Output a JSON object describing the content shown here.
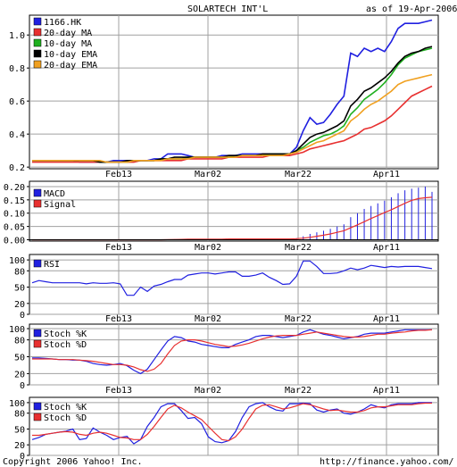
{
  "header": {
    "title": "SOLARTECH INT'L",
    "asof": "as of 19-Apr-2006"
  },
  "footer": {
    "copyright": "Copyright 2006 Yahoo! Inc.",
    "url": "http://finance.yahoo.com/"
  },
  "colors": {
    "blue": "#2020e0",
    "red": "#e83030",
    "green": "#20b020",
    "black": "#000000",
    "orange": "#f0a020",
    "grid": "#a0a0a0"
  },
  "chart_data": [
    {
      "type": "line",
      "name": "price",
      "x_ticks": [
        "Feb13",
        "Mar02",
        "Mar22",
        "Apr11"
      ],
      "ylim": [
        0.19,
        1.12
      ],
      "y_ticks": [
        0.2,
        0.4,
        0.6,
        0.8,
        1.0
      ],
      "y_tick_labels": [
        "0.2",
        "0.4",
        "0.6",
        "0.8",
        "1.0"
      ],
      "series": [
        {
          "name": "1166.HK",
          "color": "#2020e0",
          "values": [
            0.24,
            0.24,
            0.24,
            0.24,
            0.24,
            0.24,
            0.24,
            0.23,
            0.23,
            0.23,
            0.23,
            0.23,
            0.24,
            0.24,
            0.24,
            0.24,
            0.24,
            0.24,
            0.25,
            0.25,
            0.28,
            0.28,
            0.28,
            0.27,
            0.26,
            0.26,
            0.26,
            0.26,
            0.27,
            0.27,
            0.27,
            0.28,
            0.28,
            0.28,
            0.28,
            0.28,
            0.28,
            0.28,
            0.28,
            0.32,
            0.42,
            0.5,
            0.46,
            0.47,
            0.52,
            0.58,
            0.63,
            0.89,
            0.87,
            0.92,
            0.9,
            0.92,
            0.9,
            0.96,
            1.04,
            1.07,
            1.07,
            1.07,
            1.08,
            1.09
          ]
        },
        {
          "name": "20-day MA",
          "color": "#e83030",
          "values": [
            0.23,
            0.23,
            0.23,
            0.23,
            0.23,
            0.23,
            0.23,
            0.23,
            0.23,
            0.23,
            0.23,
            0.23,
            0.23,
            0.23,
            0.23,
            0.23,
            0.24,
            0.24,
            0.24,
            0.24,
            0.24,
            0.24,
            0.24,
            0.25,
            0.25,
            0.25,
            0.25,
            0.25,
            0.25,
            0.26,
            0.26,
            0.26,
            0.26,
            0.26,
            0.26,
            0.27,
            0.27,
            0.27,
            0.27,
            0.28,
            0.29,
            0.31,
            0.32,
            0.33,
            0.34,
            0.35,
            0.36,
            0.38,
            0.4,
            0.43,
            0.44,
            0.46,
            0.48,
            0.51,
            0.55,
            0.59,
            0.63,
            0.65,
            0.67,
            0.69
          ]
        },
        {
          "name": "10-day MA",
          "color": "#20b020",
          "values": [
            0.24,
            0.24,
            0.24,
            0.24,
            0.24,
            0.24,
            0.24,
            0.24,
            0.24,
            0.24,
            0.23,
            0.23,
            0.23,
            0.23,
            0.23,
            0.24,
            0.24,
            0.24,
            0.24,
            0.25,
            0.25,
            0.25,
            0.25,
            0.26,
            0.26,
            0.26,
            0.26,
            0.26,
            0.26,
            0.26,
            0.27,
            0.27,
            0.27,
            0.27,
            0.27,
            0.28,
            0.28,
            0.28,
            0.28,
            0.3,
            0.32,
            0.35,
            0.37,
            0.39,
            0.4,
            0.42,
            0.45,
            0.52,
            0.56,
            0.61,
            0.64,
            0.67,
            0.71,
            0.76,
            0.82,
            0.86,
            0.88,
            0.9,
            0.91,
            0.92
          ]
        },
        {
          "name": "10-day EMA",
          "color": "#000000",
          "values": [
            0.24,
            0.24,
            0.24,
            0.24,
            0.24,
            0.24,
            0.24,
            0.24,
            0.24,
            0.24,
            0.23,
            0.23,
            0.23,
            0.23,
            0.24,
            0.24,
            0.24,
            0.24,
            0.24,
            0.25,
            0.25,
            0.26,
            0.26,
            0.26,
            0.26,
            0.26,
            0.26,
            0.26,
            0.26,
            0.27,
            0.27,
            0.27,
            0.27,
            0.27,
            0.28,
            0.28,
            0.28,
            0.28,
            0.28,
            0.3,
            0.34,
            0.38,
            0.4,
            0.41,
            0.43,
            0.45,
            0.48,
            0.57,
            0.61,
            0.66,
            0.68,
            0.71,
            0.74,
            0.78,
            0.83,
            0.87,
            0.89,
            0.9,
            0.92,
            0.93
          ]
        },
        {
          "name": "20-day EMA",
          "color": "#f0a020",
          "values": [
            0.24,
            0.24,
            0.24,
            0.24,
            0.24,
            0.24,
            0.24,
            0.24,
            0.24,
            0.24,
            0.24,
            0.23,
            0.23,
            0.23,
            0.23,
            0.24,
            0.24,
            0.24,
            0.24,
            0.24,
            0.25,
            0.25,
            0.25,
            0.25,
            0.26,
            0.26,
            0.26,
            0.26,
            0.26,
            0.26,
            0.26,
            0.27,
            0.27,
            0.27,
            0.27,
            0.27,
            0.27,
            0.27,
            0.28,
            0.29,
            0.31,
            0.33,
            0.35,
            0.36,
            0.38,
            0.4,
            0.42,
            0.48,
            0.51,
            0.55,
            0.58,
            0.6,
            0.63,
            0.66,
            0.7,
            0.72,
            0.73,
            0.74,
            0.75,
            0.76
          ]
        }
      ]
    },
    {
      "type": "line",
      "name": "macd",
      "x_ticks": [
        "Feb13",
        "Mar02",
        "Mar22",
        "Apr11"
      ],
      "ylim": [
        -0.005,
        0.22
      ],
      "y_ticks": [
        0.0,
        0.05,
        0.1,
        0.15,
        0.2
      ],
      "y_tick_labels": [
        "0.00",
        "0.05",
        "0.10",
        "0.15",
        "0.20"
      ],
      "series": [
        {
          "name": "MACD",
          "color": "#2020e0",
          "style": "bars",
          "values": [
            0,
            0,
            0,
            0,
            0,
            0,
            0,
            0,
            0,
            0,
            0,
            0,
            0,
            0,
            0,
            0,
            0,
            0,
            0,
            0,
            0.001,
            0.002,
            0.003,
            0.003,
            0.003,
            0.003,
            0.003,
            0.003,
            0.003,
            0.003,
            0.003,
            0.003,
            0.003,
            0.003,
            0.003,
            0.003,
            0.003,
            0.003,
            0.003,
            0.006,
            0.013,
            0.022,
            0.028,
            0.034,
            0.041,
            0.05,
            0.058,
            0.085,
            0.1,
            0.116,
            0.127,
            0.137,
            0.147,
            0.16,
            0.175,
            0.186,
            0.192,
            0.196,
            0.2,
            0.18
          ]
        },
        {
          "name": "Signal",
          "color": "#e83030",
          "values": [
            0,
            0,
            0,
            0,
            0,
            0,
            0,
            0,
            0,
            0,
            0,
            0,
            0,
            0,
            0,
            0,
            0,
            0,
            0,
            0,
            0.0005,
            0.001,
            0.0015,
            0.002,
            0.002,
            0.002,
            0.002,
            0.002,
            0.002,
            0.003,
            0.003,
            0.003,
            0.003,
            0.003,
            0.003,
            0.003,
            0.003,
            0.003,
            0.003,
            0.004,
            0.006,
            0.009,
            0.013,
            0.017,
            0.022,
            0.028,
            0.034,
            0.045,
            0.056,
            0.068,
            0.08,
            0.091,
            0.102,
            0.113,
            0.125,
            0.137,
            0.148,
            0.155,
            0.158,
            0.16
          ]
        }
      ]
    },
    {
      "type": "line",
      "name": "rsi",
      "x_ticks": [
        "Feb13",
        "Mar02",
        "Mar22",
        "Apr11"
      ],
      "ylim": [
        0,
        110
      ],
      "y_ticks": [
        0,
        20,
        50,
        80,
        100
      ],
      "y_tick_labels": [
        "0",
        "20",
        "50",
        "80",
        "100"
      ],
      "series": [
        {
          "name": "RSI",
          "color": "#2020e0",
          "values": [
            58,
            62,
            60,
            58,
            58,
            58,
            58,
            58,
            56,
            58,
            57,
            57,
            58,
            56,
            35,
            35,
            50,
            42,
            52,
            55,
            60,
            64,
            64,
            72,
            74,
            76,
            76,
            74,
            76,
            78,
            78,
            70,
            70,
            72,
            76,
            68,
            62,
            55,
            56,
            70,
            98,
            98,
            88,
            75,
            75,
            76,
            80,
            85,
            82,
            85,
            90,
            88,
            86,
            88,
            87,
            88,
            88,
            88,
            86,
            84
          ]
        }
      ]
    },
    {
      "type": "line",
      "name": "stoch_slow",
      "x_ticks": [
        "Feb13",
        "Mar02",
        "Mar22",
        "Apr11"
      ],
      "ylim": [
        0,
        108
      ],
      "y_ticks": [
        0,
        20,
        50,
        80,
        100
      ],
      "y_tick_labels": [
        "0",
        "20",
        "50",
        "80",
        "100"
      ],
      "series": [
        {
          "name": "Stoch %K",
          "color": "#2020e0",
          "values": [
            48,
            48,
            47,
            46,
            45,
            45,
            44,
            44,
            42,
            38,
            36,
            35,
            36,
            38,
            34,
            26,
            20,
            28,
            45,
            62,
            78,
            86,
            84,
            78,
            76,
            72,
            70,
            68,
            66,
            66,
            72,
            76,
            80,
            86,
            88,
            88,
            86,
            84,
            86,
            88,
            94,
            98,
            94,
            90,
            88,
            85,
            82,
            84,
            86,
            90,
            92,
            92,
            92,
            94,
            96,
            98,
            98,
            98,
            98,
            98
          ]
        },
        {
          "name": "Stoch %D",
          "color": "#e83030",
          "values": [
            46,
            46,
            46,
            46,
            45,
            45,
            45,
            44,
            43,
            42,
            40,
            38,
            36,
            36,
            35,
            32,
            27,
            24,
            28,
            38,
            55,
            70,
            78,
            80,
            80,
            78,
            75,
            72,
            70,
            68,
            69,
            71,
            74,
            78,
            82,
            85,
            87,
            88,
            88,
            88,
            90,
            92,
            94,
            92,
            90,
            88,
            86,
            85,
            85,
            86,
            88,
            90,
            90,
            92,
            93,
            94,
            96,
            97,
            97,
            98
          ]
        }
      ]
    },
    {
      "type": "line",
      "name": "stoch_fast",
      "x_ticks": [
        "Feb13",
        "Mar02",
        "Mar22",
        "Apr11"
      ],
      "ylim": [
        0,
        110
      ],
      "y_ticks": [
        0,
        20,
        50,
        80,
        100
      ],
      "y_tick_labels": [
        "0",
        "20",
        "50",
        "80",
        "100"
      ],
      "series": [
        {
          "name": "Stoch %K",
          "color": "#2020e0",
          "values": [
            30,
            34,
            40,
            42,
            44,
            46,
            50,
            30,
            32,
            52,
            44,
            38,
            30,
            34,
            36,
            22,
            30,
            55,
            72,
            92,
            98,
            98,
            85,
            70,
            72,
            60,
            35,
            26,
            24,
            28,
            45,
            72,
            92,
            98,
            100,
            92,
            86,
            84,
            98,
            98,
            99,
            98,
            86,
            82,
            86,
            88,
            80,
            78,
            82,
            88,
            96,
            92,
            90,
            96,
            98,
            98,
            98,
            100,
            100,
            100
          ]
        },
        {
          "name": "Stoch %D",
          "color": "#e83030",
          "values": [
            38,
            38,
            40,
            42,
            44,
            45,
            44,
            40,
            38,
            42,
            44,
            42,
            38,
            34,
            33,
            30,
            30,
            40,
            55,
            72,
            88,
            95,
            90,
            82,
            75,
            68,
            55,
            42,
            30,
            28,
            35,
            50,
            70,
            88,
            95,
            96,
            92,
            88,
            90,
            94,
            98,
            96,
            92,
            88,
            85,
            86,
            84,
            82,
            82,
            85,
            90,
            92,
            92,
            94,
            96,
            96,
            96,
            98,
            99,
            99
          ]
        }
      ]
    }
  ]
}
